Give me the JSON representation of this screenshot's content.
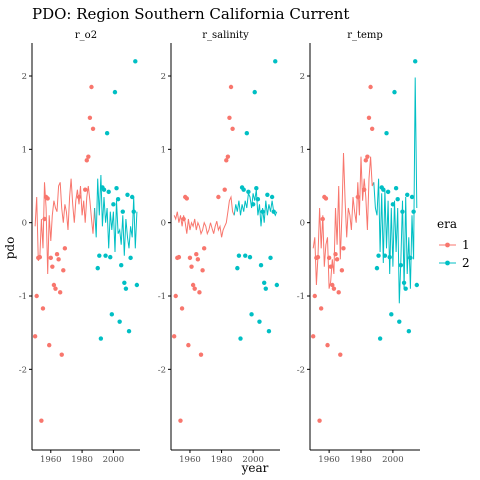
{
  "chart_data": {
    "type": "scatter",
    "title": "PDO: Region Southern California Current",
    "xlabel": "year",
    "ylabel": "pdo",
    "xlim": [
      1948,
      2017
    ],
    "ylim": [
      -3.1,
      2.45
    ],
    "x_ticks": [
      1960,
      1980,
      2000
    ],
    "y_ticks": [
      -2,
      -1,
      0,
      1,
      2
    ],
    "legend": {
      "title": "era",
      "position": "right",
      "entries": [
        {
          "label": "1",
          "color": "#F8766D"
        },
        {
          "label": "2",
          "color": "#00BFC4"
        }
      ]
    },
    "points": {
      "era1": [
        [
          1950,
          -1.55
        ],
        [
          1951,
          -1.0
        ],
        [
          1952,
          -0.48
        ],
        [
          1953,
          -0.47
        ],
        [
          1954,
          -2.7
        ],
        [
          1955,
          -1.17
        ],
        [
          1956,
          0.05
        ],
        [
          1957,
          0.35
        ],
        [
          1958,
          0.33
        ],
        [
          1959,
          -1.67
        ],
        [
          1960,
          -0.48
        ],
        [
          1961,
          -0.6
        ],
        [
          1962,
          -0.85
        ],
        [
          1963,
          -0.9
        ],
        [
          1964,
          -0.43
        ],
        [
          1965,
          -0.5
        ],
        [
          1966,
          -0.95
        ],
        [
          1967,
          -1.8
        ],
        [
          1968,
          -0.65
        ],
        [
          1969,
          -0.35
        ],
        [
          1978,
          0.35
        ],
        [
          1982,
          0.45
        ],
        [
          1983,
          0.85
        ],
        [
          1984,
          0.9
        ],
        [
          1985,
          1.43
        ],
        [
          1986,
          1.85
        ],
        [
          1987,
          1.28
        ]
      ],
      "era2": [
        [
          1990,
          -0.62
        ],
        [
          1991,
          -0.45
        ],
        [
          1992,
          -1.58
        ],
        [
          1993,
          0.48
        ],
        [
          1994,
          0.45
        ],
        [
          1995,
          -0.45
        ],
        [
          1996,
          1.22
        ],
        [
          1997,
          0.42
        ],
        [
          1998,
          -0.47
        ],
        [
          1999,
          -1.25
        ],
        [
          2000,
          0.25
        ],
        [
          2001,
          1.78
        ],
        [
          2002,
          0.47
        ],
        [
          2003,
          0.32
        ],
        [
          2004,
          -1.35
        ],
        [
          2005,
          -0.58
        ],
        [
          2006,
          0.15
        ],
        [
          2007,
          -0.82
        ],
        [
          2008,
          -0.9
        ],
        [
          2009,
          0.38
        ],
        [
          2010,
          -1.48
        ],
        [
          2011,
          -0.48
        ],
        [
          2012,
          0.35
        ],
        [
          2013,
          0.15
        ],
        [
          2014,
          2.2
        ],
        [
          2015,
          -0.85
        ]
      ]
    },
    "panels": [
      {
        "name": "r_o2",
        "line_era1": [
          [
            1950,
            -0.05
          ],
          [
            1951,
            0.35
          ],
          [
            1952,
            -0.52
          ],
          [
            1953,
            -0.48
          ],
          [
            1954,
            0.05
          ],
          [
            1955,
            -0.35
          ],
          [
            1956,
            0.55
          ],
          [
            1957,
            0.2
          ],
          [
            1958,
            -0.7
          ],
          [
            1959,
            0.1
          ],
          [
            1960,
            -0.25
          ],
          [
            1961,
            0.1
          ],
          [
            1962,
            0.3
          ],
          [
            1963,
            0.2
          ],
          [
            1964,
            0.15
          ],
          [
            1965,
            0.5
          ],
          [
            1966,
            0.55
          ],
          [
            1967,
            0.2
          ],
          [
            1968,
            0.0
          ],
          [
            1969,
            0.25
          ],
          [
            1970,
            0.15
          ],
          [
            1971,
            -0.1
          ],
          [
            1972,
            0.35
          ],
          [
            1973,
            0.6
          ],
          [
            1974,
            0.25
          ],
          [
            1975,
            0.0
          ],
          [
            1976,
            0.3
          ],
          [
            1977,
            0.45
          ],
          [
            1978,
            0.25
          ],
          [
            1979,
            0.5
          ],
          [
            1980,
            0.1
          ],
          [
            1981,
            0.3
          ],
          [
            1982,
            0.0
          ],
          [
            1983,
            0.35
          ],
          [
            1984,
            0.5
          ],
          [
            1985,
            0.3
          ],
          [
            1986,
            0.05
          ],
          [
            1987,
            -0.15
          ],
          [
            1988,
            0.2
          ]
        ],
        "line_era2": [
          [
            1988,
            0.2
          ],
          [
            1989,
            -0.2
          ],
          [
            1990,
            0.6
          ],
          [
            1991,
            0.1
          ],
          [
            1992,
            0.65
          ],
          [
            1993,
            -0.05
          ],
          [
            1994,
            0.35
          ],
          [
            1995,
            0.0
          ],
          [
            1996,
            0.2
          ],
          [
            1997,
            -0.35
          ],
          [
            1998,
            0.15
          ],
          [
            1999,
            -0.1
          ],
          [
            2000,
            0.15
          ],
          [
            2001,
            -0.4
          ],
          [
            2002,
            0.3
          ],
          [
            2003,
            -0.15
          ],
          [
            2004,
            -0.1
          ],
          [
            2005,
            -0.3
          ],
          [
            2006,
            0.1
          ],
          [
            2007,
            -0.45
          ],
          [
            2008,
            0.05
          ],
          [
            2009,
            -0.2
          ],
          [
            2010,
            -0.35
          ],
          [
            2011,
            -0.05
          ],
          [
            2012,
            -0.2
          ],
          [
            2013,
            0.35
          ],
          [
            2014,
            -0.35
          ],
          [
            2015,
            0.15
          ]
        ]
      },
      {
        "name": "r_salinity",
        "line_era1": [
          [
            1950,
            0.1
          ],
          [
            1951,
            0.05
          ],
          [
            1952,
            0.15
          ],
          [
            1953,
            0.0
          ],
          [
            1954,
            0.1
          ],
          [
            1955,
            -0.05
          ],
          [
            1956,
            0.1
          ],
          [
            1957,
            0.0
          ],
          [
            1958,
            -0.15
          ],
          [
            1959,
            0.05
          ],
          [
            1960,
            -0.1
          ],
          [
            1961,
            0.0
          ],
          [
            1962,
            -0.05
          ],
          [
            1963,
            0.05
          ],
          [
            1964,
            -0.1
          ],
          [
            1965,
            0.0
          ],
          [
            1966,
            -0.05
          ],
          [
            1967,
            -0.15
          ],
          [
            1968,
            -0.1
          ],
          [
            1969,
            0.0
          ],
          [
            1970,
            -0.05
          ],
          [
            1971,
            -0.15
          ],
          [
            1972,
            -0.1
          ],
          [
            1973,
            0.0
          ],
          [
            1974,
            -0.08
          ],
          [
            1975,
            -0.15
          ],
          [
            1976,
            -0.05
          ],
          [
            1977,
            0.02
          ],
          [
            1978,
            -0.1
          ],
          [
            1979,
            -0.05
          ],
          [
            1980,
            -0.2
          ],
          [
            1981,
            -0.1
          ],
          [
            1982,
            -0.05
          ],
          [
            1983,
            0.0
          ],
          [
            1984,
            0.15
          ],
          [
            1985,
            0.3
          ],
          [
            1986,
            0.35
          ],
          [
            1987,
            0.15
          ],
          [
            1988,
            0.1
          ]
        ],
        "line_era2": [
          [
            1988,
            0.1
          ],
          [
            1989,
            0.25
          ],
          [
            1990,
            0.15
          ],
          [
            1991,
            0.3
          ],
          [
            1992,
            0.1
          ],
          [
            1993,
            0.25
          ],
          [
            1994,
            0.15
          ],
          [
            1995,
            0.3
          ],
          [
            1996,
            0.2
          ],
          [
            1997,
            0.4
          ],
          [
            1998,
            0.35
          ],
          [
            1999,
            0.2
          ],
          [
            2000,
            0.4
          ],
          [
            2001,
            0.3
          ],
          [
            2002,
            0.45
          ],
          [
            2003,
            0.1
          ],
          [
            2004,
            0.25
          ],
          [
            2005,
            -0.05
          ],
          [
            2006,
            0.2
          ],
          [
            2007,
            0.0
          ],
          [
            2008,
            0.3
          ],
          [
            2009,
            0.1
          ],
          [
            2010,
            0.25
          ],
          [
            2011,
            0.15
          ],
          [
            2012,
            0.3
          ],
          [
            2013,
            0.15
          ],
          [
            2014,
            0.1
          ],
          [
            2015,
            0.15
          ]
        ]
      },
      {
        "name": "r_temp",
        "line_era1": [
          [
            1950,
            -0.35
          ],
          [
            1951,
            -0.2
          ],
          [
            1952,
            -0.85
          ],
          [
            1953,
            -0.45
          ],
          [
            1954,
            0.2
          ],
          [
            1955,
            -0.35
          ],
          [
            1956,
            0.1
          ],
          [
            1957,
            -0.6
          ],
          [
            1958,
            -0.3
          ],
          [
            1959,
            -0.2
          ],
          [
            1960,
            -0.9
          ],
          [
            1961,
            -0.8
          ],
          [
            1962,
            -0.5
          ],
          [
            1963,
            -0.7
          ],
          [
            1964,
            0.2
          ],
          [
            1965,
            -0.3
          ],
          [
            1966,
            0.5
          ],
          [
            1967,
            -0.5
          ],
          [
            1968,
            0.1
          ],
          [
            1969,
            0.95
          ],
          [
            1970,
            0.3
          ],
          [
            1971,
            -0.2
          ],
          [
            1972,
            0.2
          ],
          [
            1973,
            0.1
          ],
          [
            1974,
            -0.1
          ],
          [
            1975,
            0.35
          ],
          [
            1976,
            0.15
          ],
          [
            1977,
            0.0
          ],
          [
            1978,
            0.55
          ],
          [
            1979,
            0.1
          ],
          [
            1980,
            0.9
          ],
          [
            1981,
            0.3
          ],
          [
            1982,
            0.6
          ],
          [
            1983,
            0.35
          ],
          [
            1984,
            -0.1
          ],
          [
            1985,
            0.6
          ],
          [
            1986,
            0.9
          ],
          [
            1987,
            0.5
          ],
          [
            1988,
            0.55
          ]
        ],
        "line_era2": [
          [
            1988,
            0.55
          ],
          [
            1989,
            0.2
          ],
          [
            1990,
            0.1
          ],
          [
            1991,
            0.6
          ],
          [
            1992,
            -0.4
          ],
          [
            1993,
            0.4
          ],
          [
            1994,
            -0.55
          ],
          [
            1995,
            0.45
          ],
          [
            1996,
            -0.35
          ],
          [
            1997,
            0.3
          ],
          [
            1998,
            -0.7
          ],
          [
            1999,
            0.2
          ],
          [
            2000,
            -0.6
          ],
          [
            2001,
            0.3
          ],
          [
            2002,
            -0.4
          ],
          [
            2003,
            0.2
          ],
          [
            2004,
            -1.1
          ],
          [
            2005,
            -0.5
          ],
          [
            2006,
            0.3
          ],
          [
            2007,
            -0.9
          ],
          [
            2008,
            0.35
          ],
          [
            2009,
            -0.7
          ],
          [
            2010,
            -0.2
          ],
          [
            2011,
            -0.9
          ],
          [
            2012,
            0.1
          ],
          [
            2013,
            -0.5
          ],
          [
            2014,
            1.98
          ],
          [
            2015,
            0.2
          ]
        ]
      }
    ]
  },
  "colors": {
    "era1": "#F8766D",
    "era2": "#00BFC4",
    "axis": "#000000",
    "tick_text": "#4d4d4d"
  }
}
